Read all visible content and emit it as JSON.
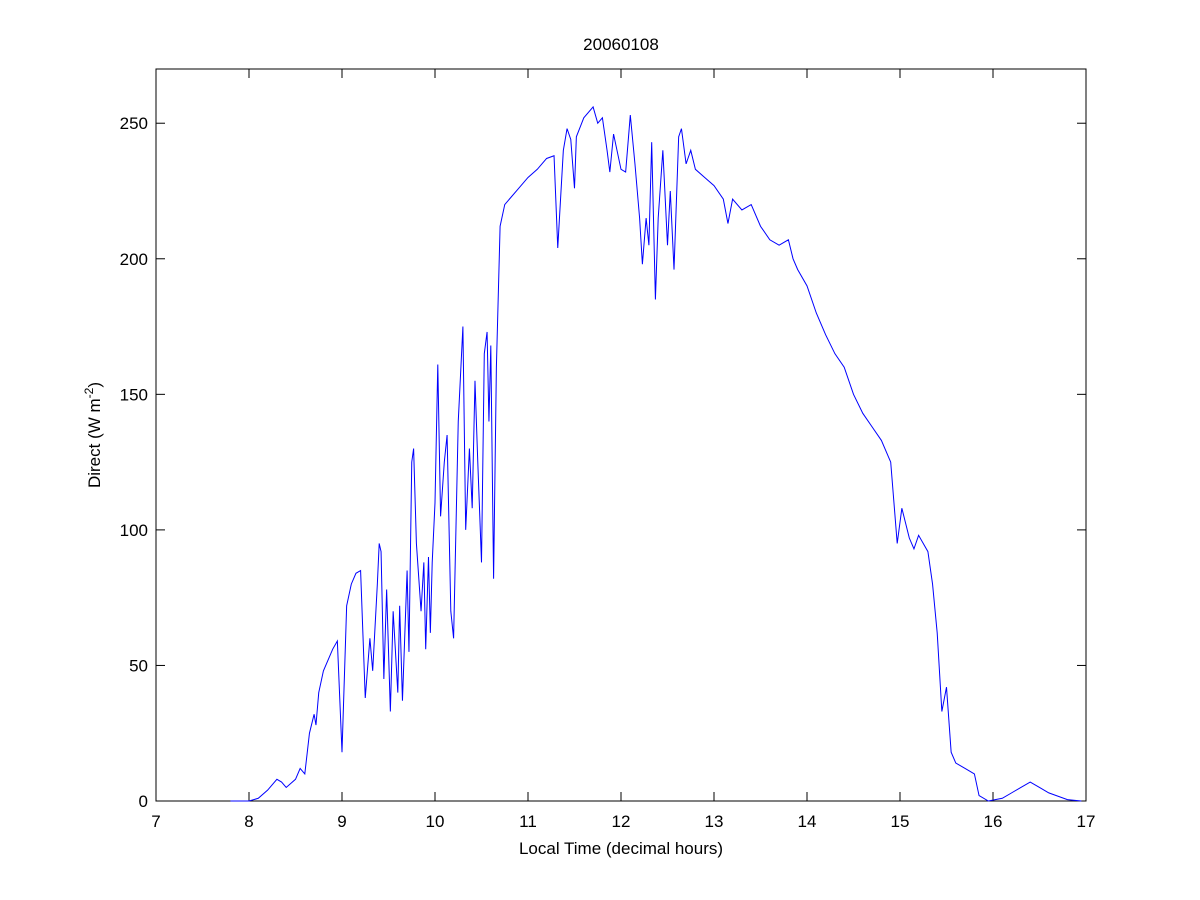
{
  "chart_data": {
    "type": "line",
    "title": "20060108",
    "xlabel": "Local Time (decimal hours)",
    "ylabel_parts": [
      "Direct (W m",
      "-2",
      ")"
    ],
    "xlim": [
      7,
      17
    ],
    "xticks": [
      7,
      8,
      9,
      10,
      11,
      12,
      13,
      14,
      15,
      16,
      17
    ],
    "ylim": [
      0,
      270
    ],
    "yticks": [
      0,
      50,
      100,
      150,
      200,
      250
    ],
    "grid": false,
    "series": [
      {
        "color": "#0000ff",
        "x": [
          7.8,
          8.0,
          8.1,
          8.2,
          8.3,
          8.35,
          8.4,
          8.5,
          8.55,
          8.6,
          8.65,
          8.7,
          8.72,
          8.75,
          8.8,
          8.9,
          8.95,
          9.0,
          9.05,
          9.1,
          9.15,
          9.2,
          9.25,
          9.3,
          9.33,
          9.38,
          9.4,
          9.42,
          9.45,
          9.48,
          9.52,
          9.55,
          9.6,
          9.62,
          9.65,
          9.7,
          9.72,
          9.75,
          9.77,
          9.8,
          9.85,
          9.88,
          9.9,
          9.93,
          9.95,
          9.97,
          10.0,
          10.03,
          10.06,
          10.1,
          10.13,
          10.17,
          10.2,
          10.25,
          10.3,
          10.33,
          10.37,
          10.4,
          10.43,
          10.46,
          10.5,
          10.53,
          10.56,
          10.58,
          10.6,
          10.63,
          10.66,
          10.7,
          10.75,
          10.8,
          10.9,
          11.0,
          11.1,
          11.2,
          11.28,
          11.32,
          11.38,
          11.42,
          11.46,
          11.5,
          11.52,
          11.6,
          11.7,
          11.75,
          11.8,
          11.85,
          11.88,
          11.92,
          12.0,
          12.05,
          12.1,
          12.15,
          12.2,
          12.23,
          12.27,
          12.3,
          12.33,
          12.37,
          12.4,
          12.45,
          12.5,
          12.53,
          12.57,
          12.62,
          12.65,
          12.7,
          12.75,
          12.8,
          12.9,
          13.0,
          13.1,
          13.15,
          13.2,
          13.3,
          13.4,
          13.5,
          13.6,
          13.7,
          13.8,
          13.85,
          13.9,
          14.0,
          14.1,
          14.2,
          14.3,
          14.4,
          14.5,
          14.6,
          14.7,
          14.8,
          14.9,
          14.97,
          15.02,
          15.1,
          15.15,
          15.2,
          15.3,
          15.35,
          15.4,
          15.45,
          15.5,
          15.55,
          15.6,
          15.7,
          15.8,
          15.85,
          15.95,
          16.1,
          16.2,
          16.3,
          16.4,
          16.5,
          16.6,
          16.8,
          16.95
        ],
        "values": [
          0,
          0,
          1,
          4,
          8,
          7,
          5,
          8,
          12,
          10,
          25,
          32,
          28,
          40,
          48,
          56,
          59,
          18,
          72,
          80,
          84,
          85,
          38,
          60,
          48,
          80,
          95,
          92,
          45,
          78,
          33,
          70,
          40,
          72,
          37,
          85,
          55,
          125,
          130,
          95,
          70,
          88,
          56,
          90,
          62,
          88,
          110,
          161,
          105,
          125,
          135,
          70,
          60,
          140,
          175,
          100,
          130,
          108,
          155,
          125,
          88,
          165,
          173,
          140,
          168,
          82,
          160,
          212,
          220,
          222,
          226,
          230,
          233,
          237,
          238,
          204,
          240,
          248,
          244,
          226,
          245,
          252,
          256,
          250,
          252,
          240,
          232,
          246,
          233,
          232,
          253,
          235,
          215,
          198,
          215,
          205,
          243,
          185,
          215,
          240,
          205,
          225,
          196,
          245,
          248,
          235,
          240,
          233,
          230,
          227,
          222,
          213,
          222,
          218,
          220,
          212,
          207,
          205,
          207,
          200,
          196,
          190,
          180,
          172,
          165,
          160,
          150,
          143,
          138,
          133,
          125,
          95,
          108,
          97,
          93,
          98,
          92,
          80,
          62,
          33,
          42,
          18,
          14,
          12,
          10,
          2,
          0,
          1,
          3,
          5,
          7,
          5,
          3,
          0.5,
          0
        ]
      }
    ]
  }
}
